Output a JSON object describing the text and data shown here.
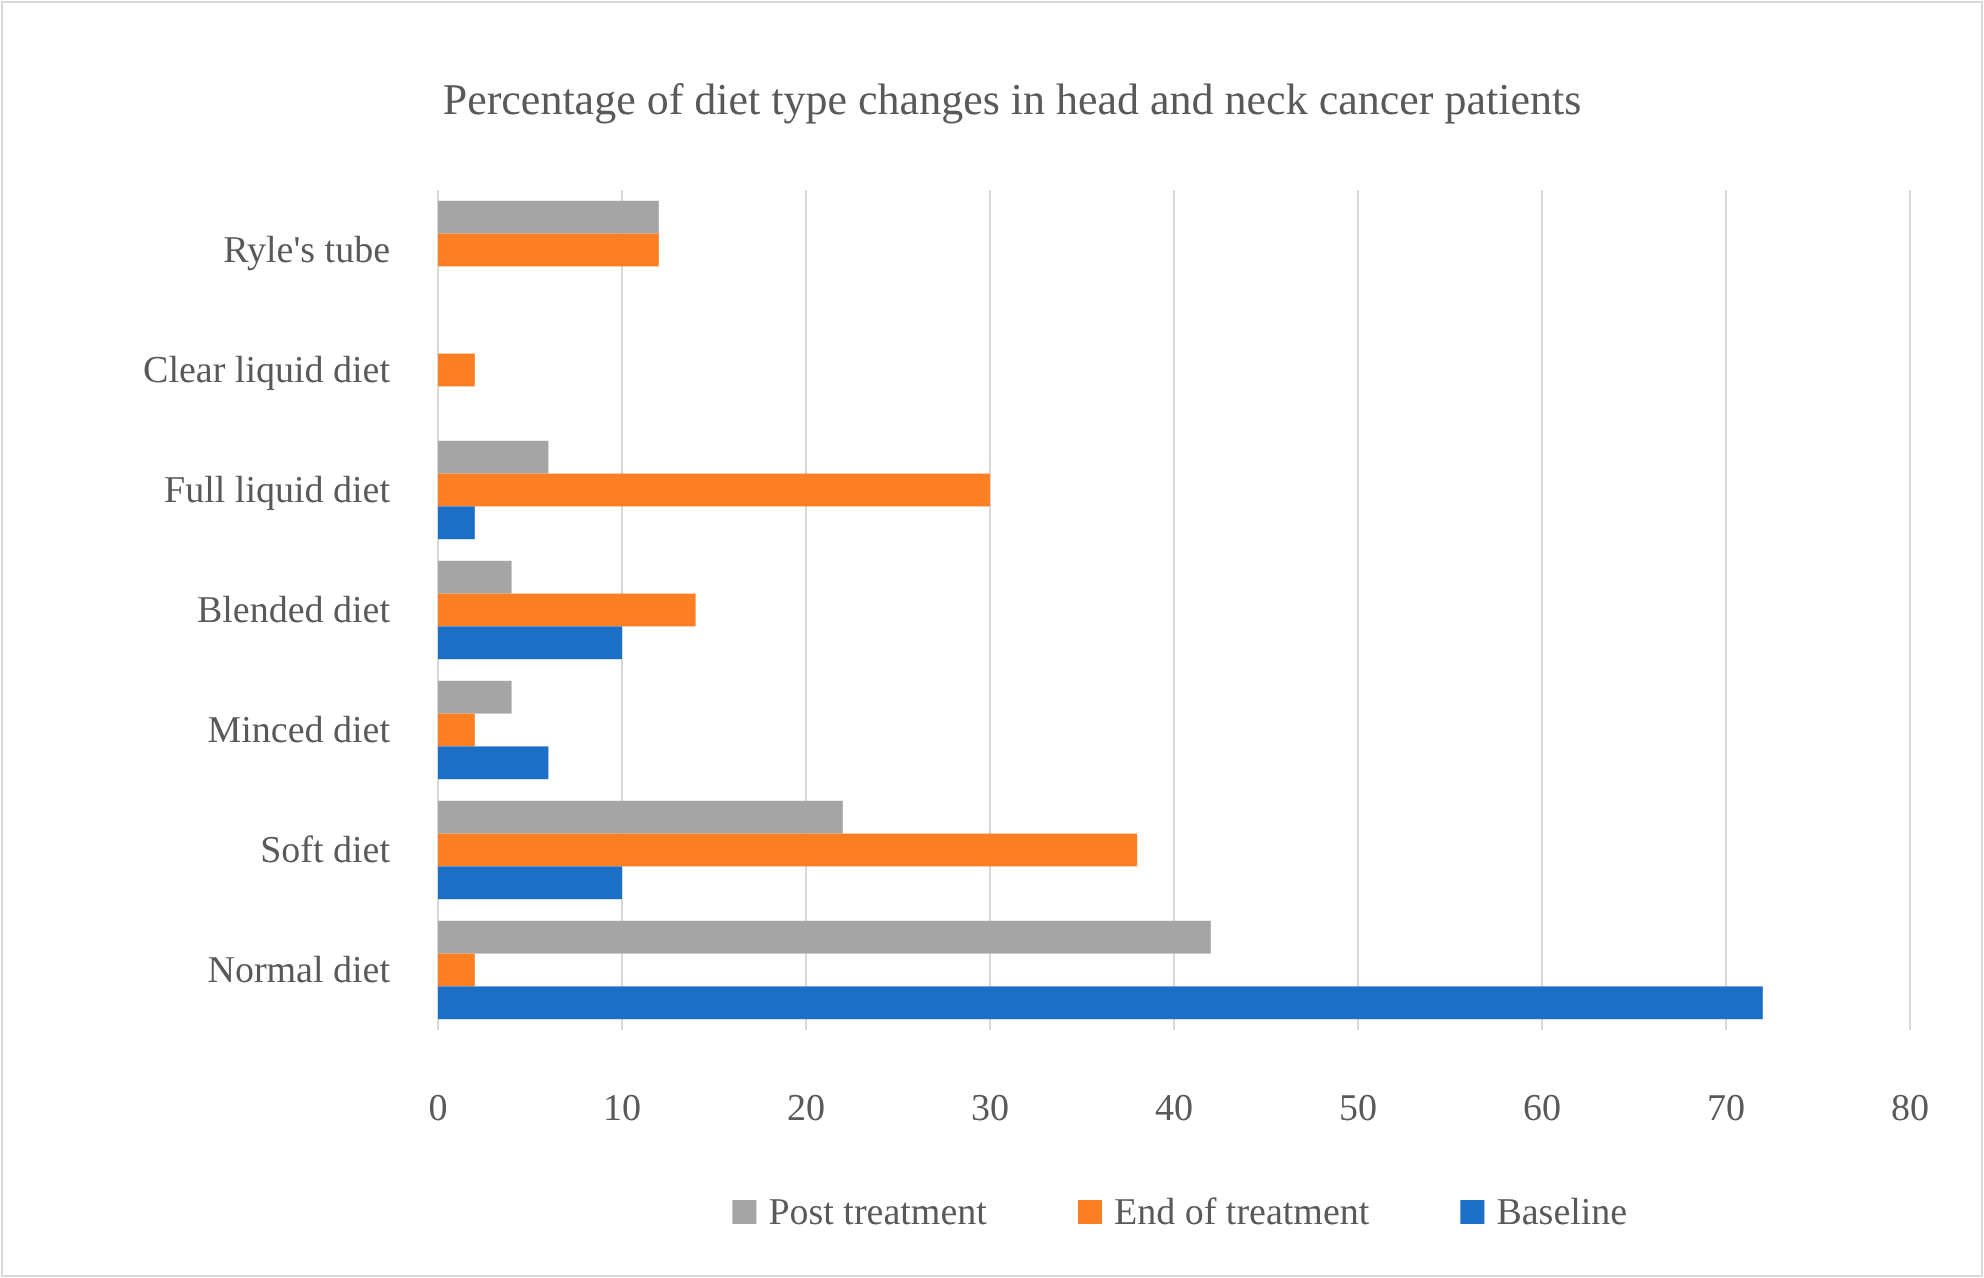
{
  "chart_data": {
    "type": "bar",
    "orientation": "horizontal",
    "title": "Percentage of diet type changes in head and neck cancer patients",
    "categories": [
      "Ryle's tube",
      "Clear liquid diet",
      "Full liquid diet",
      "Blended diet",
      "Minced diet",
      "Soft diet",
      "Normal diet"
    ],
    "series": [
      {
        "name": "Post treatment",
        "color": "#a5a5a5",
        "values": [
          12,
          0,
          6,
          4,
          4,
          22,
          42
        ]
      },
      {
        "name": "End of treatment",
        "color": "#fd7e23",
        "values": [
          12,
          2,
          30,
          14,
          2,
          38,
          2
        ]
      },
      {
        "name": "Baseline",
        "color": "#1c6fc6",
        "values": [
          0,
          0,
          2,
          10,
          6,
          10,
          72
        ]
      }
    ],
    "xlim": [
      0,
      80
    ],
    "xticks": [
      0,
      10,
      20,
      30,
      40,
      50,
      60,
      70,
      80
    ],
    "grid": "x",
    "legend": "bottom"
  }
}
